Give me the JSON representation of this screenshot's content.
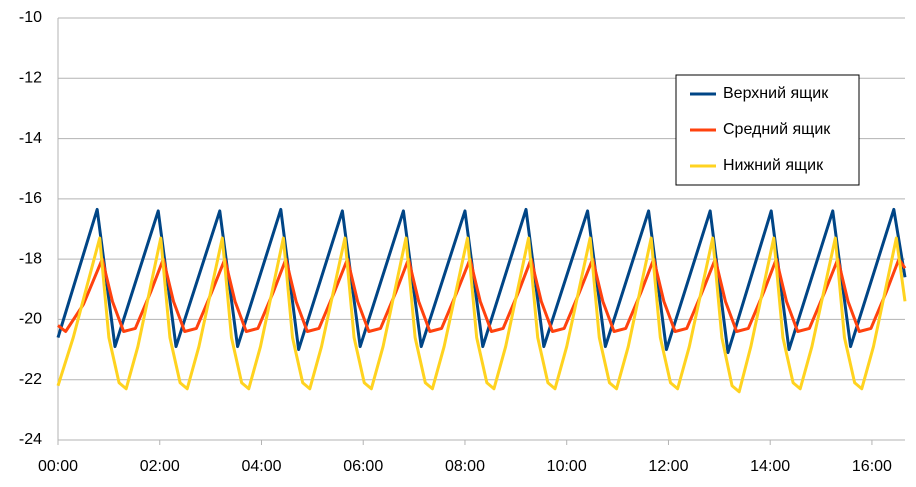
{
  "chart_data": {
    "type": "line",
    "xlim": [
      0,
      16.65
    ],
    "ylim": [
      -24,
      -10
    ],
    "yticks": [
      -24,
      -22,
      -20,
      -18,
      -16,
      -14,
      -12,
      -10
    ],
    "xticks": [
      {
        "value": 0,
        "label": "00:00"
      },
      {
        "value": 2,
        "label": "02:00"
      },
      {
        "value": 4,
        "label": "04:00"
      },
      {
        "value": 6,
        "label": "06:00"
      },
      {
        "value": 8,
        "label": "08:00"
      },
      {
        "value": 10,
        "label": "10:00"
      },
      {
        "value": 12,
        "label": "12:00"
      },
      {
        "value": 14,
        "label": "14:00"
      },
      {
        "value": 16,
        "label": "16:00"
      }
    ],
    "grid": true,
    "series": [
      {
        "name": "Верхний ящик",
        "color": "#004586",
        "x": [
          0,
          0.77,
          1.12,
          1.97,
          2.32,
          3.18,
          3.53,
          4.38,
          4.73,
          5.59,
          5.94,
          6.79,
          7.14,
          8.0,
          8.35,
          9.2,
          9.55,
          10.41,
          10.76,
          11.61,
          11.96,
          12.82,
          13.17,
          14.02,
          14.37,
          15.23,
          15.58,
          16.43,
          16.65
        ],
        "values": [
          -20.6,
          -16.35,
          -20.9,
          -16.4,
          -20.9,
          -16.4,
          -20.9,
          -16.35,
          -21.0,
          -16.4,
          -20.9,
          -16.4,
          -20.9,
          -16.4,
          -20.9,
          -16.35,
          -20.9,
          -16.4,
          -20.9,
          -16.4,
          -21.0,
          -16.4,
          -21.1,
          -16.4,
          -21.0,
          -16.4,
          -20.9,
          -16.35,
          -18.6
        ]
      },
      {
        "name": "Средний ящик",
        "color": "#ff420e",
        "x": [
          0,
          0.15,
          0.5,
          0.87,
          1.07,
          1.29,
          1.52,
          1.82,
          2.07,
          2.27,
          2.49,
          2.72,
          3.02,
          3.28,
          3.48,
          3.7,
          3.93,
          4.23,
          4.48,
          4.68,
          4.9,
          5.13,
          5.43,
          5.69,
          5.89,
          6.11,
          6.34,
          6.64,
          6.89,
          7.09,
          7.31,
          7.54,
          7.84,
          8.1,
          8.3,
          8.52,
          8.75,
          9.05,
          9.3,
          9.5,
          9.72,
          9.95,
          10.25,
          10.51,
          10.71,
          10.93,
          11.16,
          11.46,
          11.71,
          11.91,
          12.13,
          12.36,
          12.66,
          12.92,
          13.12,
          13.34,
          13.57,
          13.87,
          14.12,
          14.32,
          14.54,
          14.77,
          15.07,
          15.33,
          15.53,
          15.75,
          15.98,
          16.28,
          16.53,
          16.65
        ],
        "values": [
          -20.2,
          -20.4,
          -19.5,
          -18.0,
          -19.4,
          -20.4,
          -20.3,
          -19.1,
          -18.0,
          -19.4,
          -20.4,
          -20.3,
          -19.1,
          -18.0,
          -19.4,
          -20.4,
          -20.3,
          -19.1,
          -18.0,
          -19.4,
          -20.4,
          -20.3,
          -19.1,
          -18.0,
          -19.4,
          -20.4,
          -20.3,
          -19.1,
          -18.0,
          -19.4,
          -20.4,
          -20.3,
          -19.1,
          -18.0,
          -19.4,
          -20.4,
          -20.3,
          -19.1,
          -18.0,
          -19.4,
          -20.4,
          -20.3,
          -19.1,
          -18.0,
          -19.4,
          -20.4,
          -20.3,
          -19.1,
          -18.0,
          -19.4,
          -20.4,
          -20.3,
          -19.1,
          -18.0,
          -19.4,
          -20.4,
          -20.3,
          -19.1,
          -18.0,
          -19.4,
          -20.4,
          -20.3,
          -19.1,
          -18.0,
          -19.4,
          -20.4,
          -20.3,
          -19.1,
          -18.0,
          -18.3
        ]
      },
      {
        "name": "Нижний ящик",
        "color": "#ffd320",
        "x": [
          0,
          0.3,
          0.82,
          1.0,
          1.2,
          1.34,
          1.57,
          2.02,
          2.2,
          2.4,
          2.54,
          2.77,
          3.23,
          3.41,
          3.61,
          3.75,
          3.98,
          4.43,
          4.61,
          4.81,
          4.95,
          5.18,
          5.64,
          5.82,
          6.02,
          6.16,
          6.39,
          6.84,
          7.02,
          7.22,
          7.36,
          7.59,
          8.05,
          8.23,
          8.43,
          8.57,
          8.8,
          9.25,
          9.43,
          9.63,
          9.77,
          10.0,
          10.46,
          10.64,
          10.84,
          10.98,
          11.21,
          11.66,
          11.84,
          12.04,
          12.18,
          12.41,
          12.87,
          13.05,
          13.25,
          13.39,
          13.62,
          14.07,
          14.25,
          14.45,
          14.59,
          14.82,
          15.28,
          15.46,
          15.66,
          15.8,
          16.03,
          16.48,
          16.65
        ],
        "values": [
          -22.2,
          -20.6,
          -17.3,
          -20.6,
          -22.1,
          -22.3,
          -20.9,
          -17.3,
          -20.6,
          -22.1,
          -22.3,
          -20.9,
          -17.3,
          -20.6,
          -22.1,
          -22.3,
          -20.9,
          -17.3,
          -20.6,
          -22.1,
          -22.3,
          -20.9,
          -17.3,
          -20.6,
          -22.1,
          -22.3,
          -20.9,
          -17.3,
          -20.6,
          -22.1,
          -22.3,
          -20.9,
          -17.3,
          -20.6,
          -22.1,
          -22.3,
          -20.9,
          -17.3,
          -20.6,
          -22.1,
          -22.3,
          -20.9,
          -17.3,
          -20.6,
          -22.1,
          -22.3,
          -20.9,
          -17.3,
          -20.6,
          -22.1,
          -22.3,
          -20.9,
          -17.3,
          -20.6,
          -22.2,
          -22.4,
          -20.9,
          -17.3,
          -20.6,
          -22.1,
          -22.3,
          -20.9,
          -17.3,
          -20.6,
          -22.1,
          -22.3,
          -20.9,
          -17.3,
          -19.4
        ]
      }
    ]
  }
}
